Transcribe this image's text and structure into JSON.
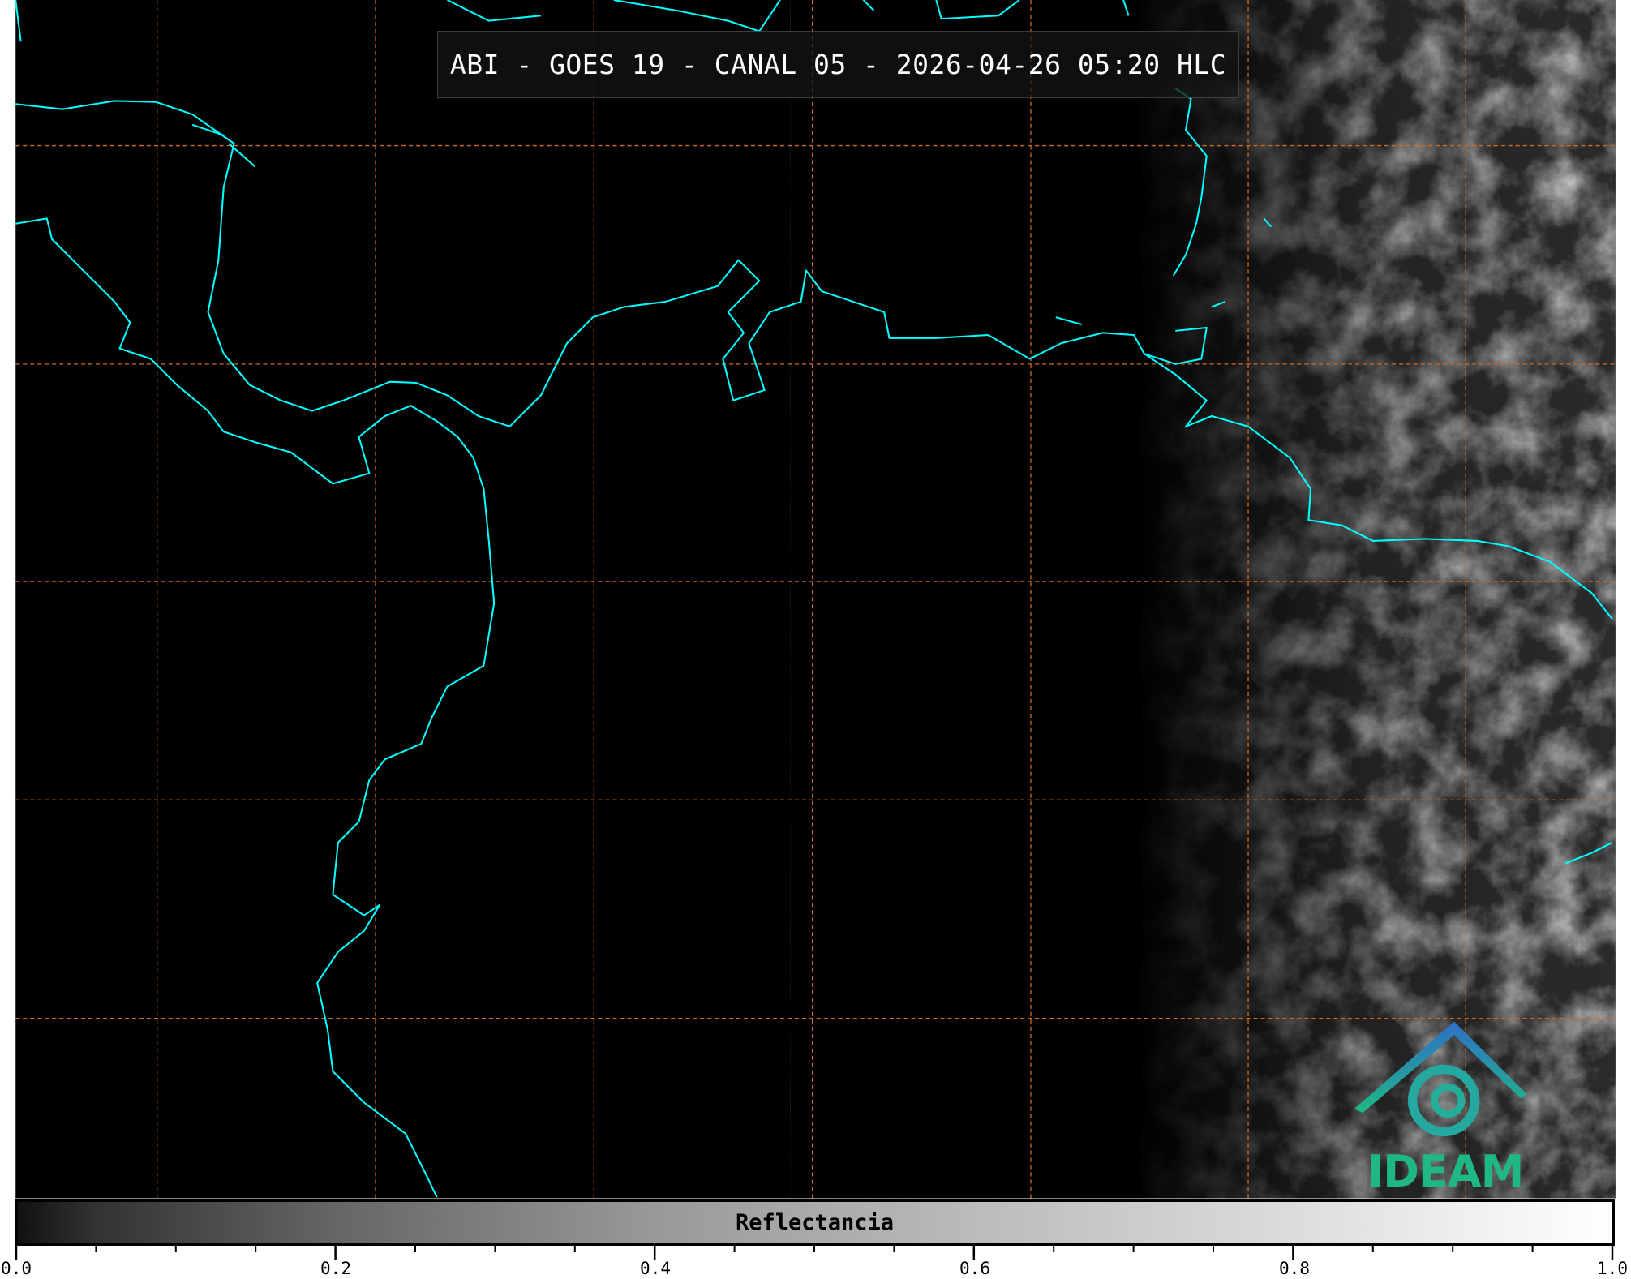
{
  "title": "ABI - GOES 19 - CANAL 05 - 2026-04-26 05:20 HLC",
  "colorbar": {
    "label": "Reflectancia",
    "range": [
      0.0,
      1.0
    ],
    "colormap": "gray",
    "ticks": [
      "0.0",
      "0.2",
      "0.4",
      "0.6",
      "0.8",
      "1.0"
    ]
  },
  "logo": {
    "text": "IDEAM",
    "color": "#1fb785",
    "roof_color": "#2f7fc8"
  },
  "colors": {
    "coastline": "#00ffff",
    "gridlines": "#d2691e",
    "background": "#000000"
  }
}
